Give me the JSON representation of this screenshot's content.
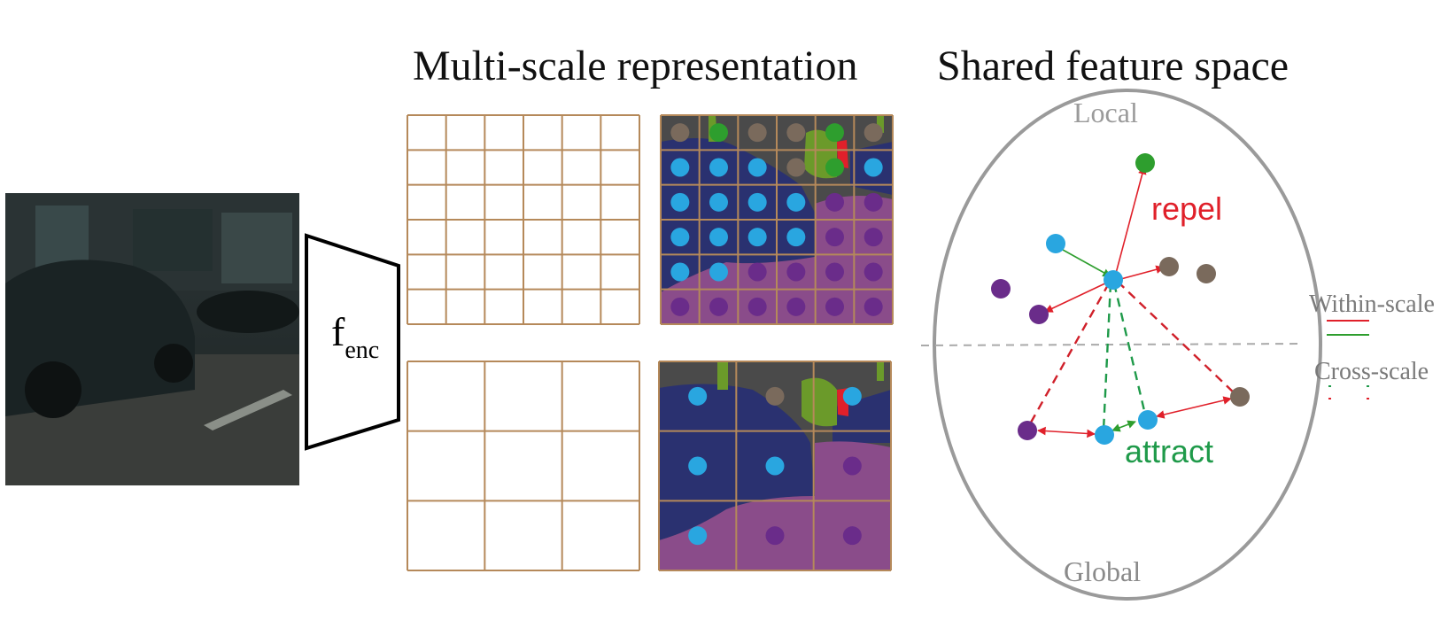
{
  "titles": {
    "multiscale": "Multi-scale representation",
    "shared": "Shared feature space"
  },
  "encoder": {
    "main": "f",
    "sub": "enc"
  },
  "space": {
    "top_label": "Local",
    "bottom_label": "Global",
    "repel_label": "repel",
    "attract_label": "attract"
  },
  "legend": {
    "within": "Within-scale",
    "cross": "Cross-scale"
  },
  "colors": {
    "grid_line": "#b5895a",
    "cyan": "#29a6e0",
    "brown": "#7a6a5c",
    "purple": "#6a2c8a",
    "green": "#2e9e2e",
    "red": "#e0202a",
    "attract_green": "#1f9a4a",
    "road": "#4a4a4a",
    "car": "#2a3170",
    "sidewalk": "#8a4c8a",
    "vegetation": "#6b9a2a",
    "ellipse": "#9a9a9a",
    "label_gray": "#9a9a9a"
  }
}
